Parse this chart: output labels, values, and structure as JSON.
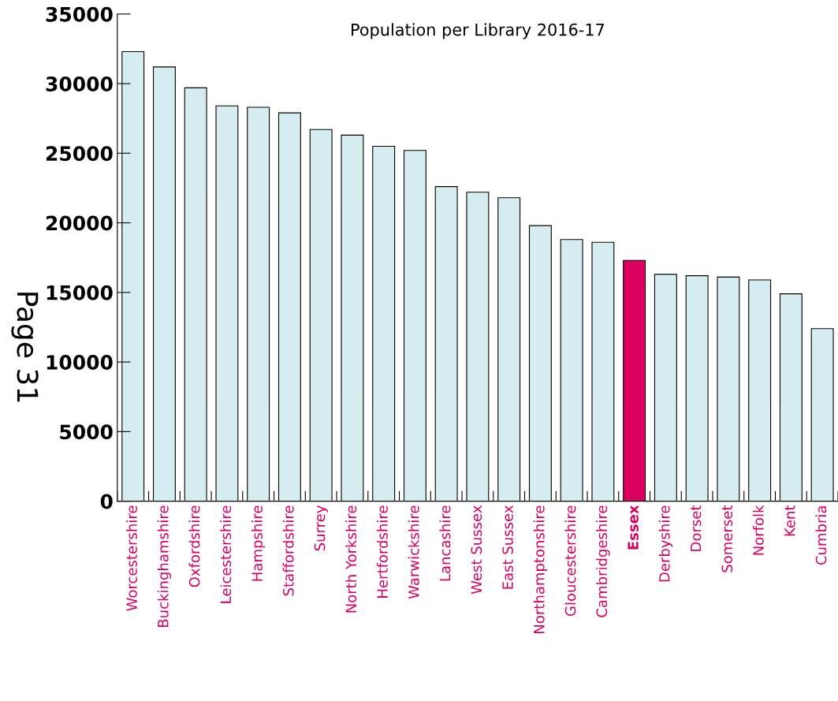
{
  "chart_data": {
    "type": "bar",
    "title": "Population per Library 2016-17",
    "categories": [
      "Worcestershire",
      "Buckinghamshire",
      "Oxfordshire",
      "Leicestershire",
      "Hampshire",
      "Staffordshire",
      "Surrey",
      "North Yorkshire",
      "Hertfordshire",
      "Warwickshire",
      "Lancashire",
      "West Sussex",
      "East Sussex",
      "Northamptonshire",
      "Gloucestershire",
      "Cambridgeshire",
      "Essex",
      "Derbyshire",
      "Dorset",
      "Somerset",
      "Norfolk",
      "Kent",
      "Cumbria"
    ],
    "values": [
      32300,
      31200,
      29700,
      28400,
      28300,
      27900,
      26700,
      26300,
      25500,
      25200,
      22600,
      22200,
      21800,
      19800,
      18800,
      18600,
      17300,
      16300,
      16200,
      16100,
      15900,
      14900,
      12400
    ],
    "colors": [
      "#d5ecf0",
      "#d5ecf0",
      "#d5ecf0",
      "#d5ecf0",
      "#d5ecf0",
      "#d5ecf0",
      "#d5ecf0",
      "#d5ecf0",
      "#d5ecf0",
      "#d5ecf0",
      "#d5ecf0",
      "#d5ecf0",
      "#d5ecf0",
      "#d5ecf0",
      "#d5ecf0",
      "#d5ecf0",
      "#dc0060",
      "#d5ecf0",
      "#d5ecf0",
      "#d5ecf0",
      "#d5ecf0",
      "#d5ecf0",
      "#d5ecf0"
    ],
    "ylim": [
      0,
      35000
    ],
    "yticks": [
      0,
      5000,
      10000,
      15000,
      20000,
      25000,
      30000,
      35000
    ],
    "grid": false,
    "legend": false,
    "annotations": [
      "Page 31"
    ]
  }
}
